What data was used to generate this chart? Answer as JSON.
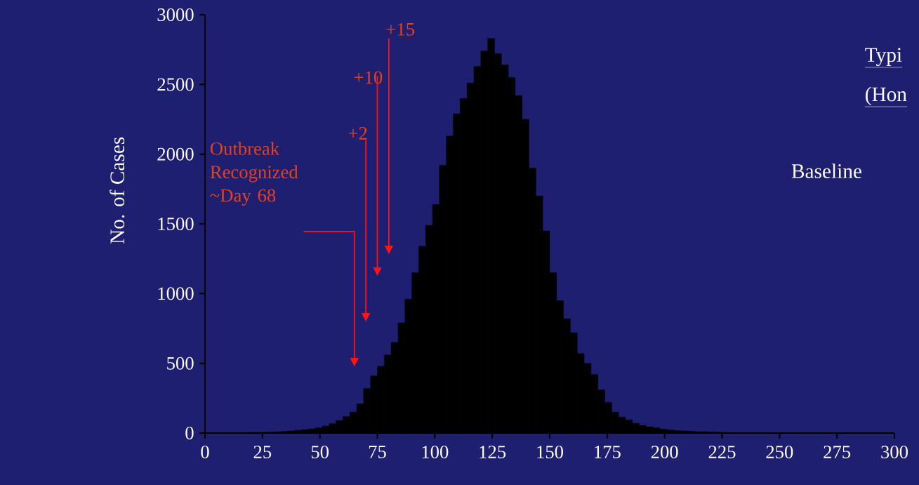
{
  "chart_data": {
    "type": "histogram",
    "color": "#000000",
    "bins": [
      18,
      21,
      24,
      27,
      30,
      33,
      36,
      39,
      42,
      45,
      48,
      51,
      54,
      57,
      60,
      63,
      66,
      69,
      72,
      75,
      78,
      81,
      84,
      87,
      90,
      93,
      96,
      99,
      102,
      105,
      108,
      111,
      114,
      117,
      120,
      123,
      126,
      129,
      132,
      135,
      138,
      141,
      144,
      147,
      150,
      153,
      156,
      159,
      162,
      165,
      168,
      171,
      174,
      177,
      180,
      183,
      186,
      189,
      192,
      195,
      198,
      201,
      204,
      207,
      210,
      213,
      216,
      219,
      222,
      225,
      228
    ],
    "values": [
      5,
      5,
      5,
      7,
      9,
      12,
      15,
      20,
      25,
      30,
      38,
      50,
      68,
      90,
      118,
      150,
      210,
      320,
      410,
      480,
      560,
      650,
      790,
      960,
      1150,
      1340,
      1490,
      1640,
      1920,
      2130,
      2290,
      2400,
      2510,
      2630,
      2740,
      2830,
      2720,
      2640,
      2550,
      2420,
      2250,
      1900,
      1700,
      1450,
      1150,
      950,
      820,
      720,
      570,
      500,
      420,
      310,
      220,
      150,
      115,
      95,
      70,
      55,
      45,
      38,
      28,
      22,
      18,
      15,
      13,
      10,
      10,
      8,
      6,
      5
    ],
    "xlim": [
      0,
      300
    ],
    "ylim": [
      0,
      3000
    ],
    "xticks": [
      0,
      25,
      50,
      75,
      100,
      125,
      150,
      175,
      200,
      225,
      250,
      275,
      300
    ],
    "yticks": [
      0,
      500,
      1000,
      1500,
      2000,
      2500,
      3000
    ],
    "ylabel": "No. of Cases",
    "annotations": [
      "Outbreak Recognized ~Day 68",
      "+2",
      "+10",
      "+15",
      "Baseline",
      "Typi",
      "(Hon"
    ]
  }
}
